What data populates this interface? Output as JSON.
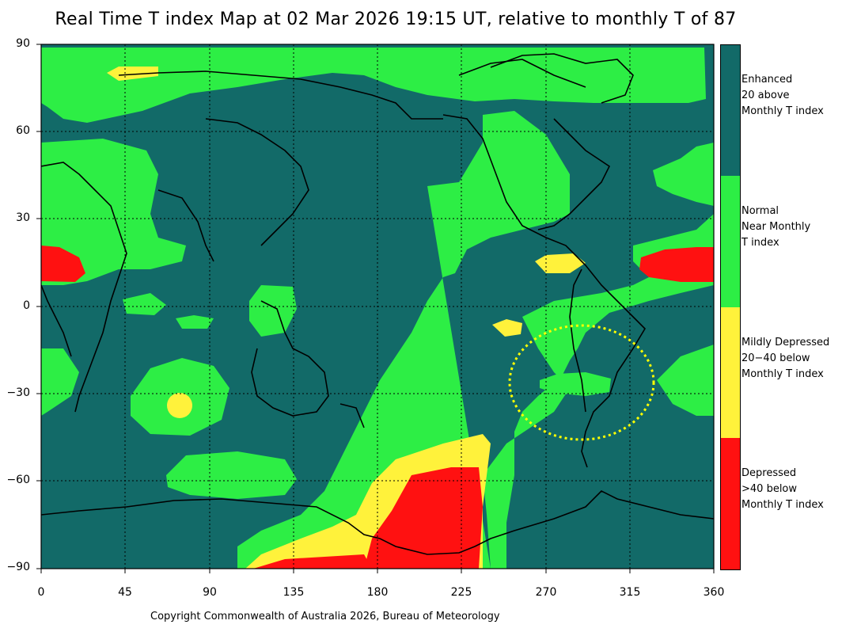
{
  "title": "Real Time T index Map at 02 Mar 2026 19:15 UT, relative to monthly T of 87",
  "axes": {
    "lat_ticks": [
      "90",
      "60",
      "30",
      "0",
      "−30",
      "−60",
      "−90"
    ],
    "lon_ticks": [
      "0",
      "45",
      "90",
      "135",
      "180",
      "225",
      "270",
      "315",
      "360"
    ]
  },
  "legend": {
    "items": [
      {
        "label": "Enhanced 20 above Monthly T index",
        "lines": [
          "Enhanced",
          "20 above",
          "Monthly T index"
        ],
        "color": "#126a68"
      },
      {
        "label": "Normal Near Monthly T index",
        "lines": [
          "Normal",
          "Near Monthly",
          "T index"
        ],
        "color": "#2dee45"
      },
      {
        "label": "Mildly Depressed 20-40 below Monthly T index",
        "lines": [
          "Mildly Depressed",
          "20−40 below",
          "Monthly T index"
        ],
        "color": "#fff23b"
      },
      {
        "label": "Depressed >40 below Monthly T index",
        "lines": [
          "Depressed",
          ">40 below",
          "Monthly T index"
        ],
        "color": "#ff1111"
      }
    ]
  },
  "copyright": "Copyright Commonwealth of Australia 2026, Bureau of Meteorology",
  "colors": {
    "enhanced": "#126a68",
    "normal": "#2dee45",
    "mild": "#fff23b",
    "depressed": "#ff1111",
    "highlight": "#ffff00"
  },
  "highlight": {
    "label": "dotted ellipse over South America",
    "center_lon": 292,
    "center_lat": -30,
    "lon_radius": 35,
    "lat_radius": 20
  }
}
